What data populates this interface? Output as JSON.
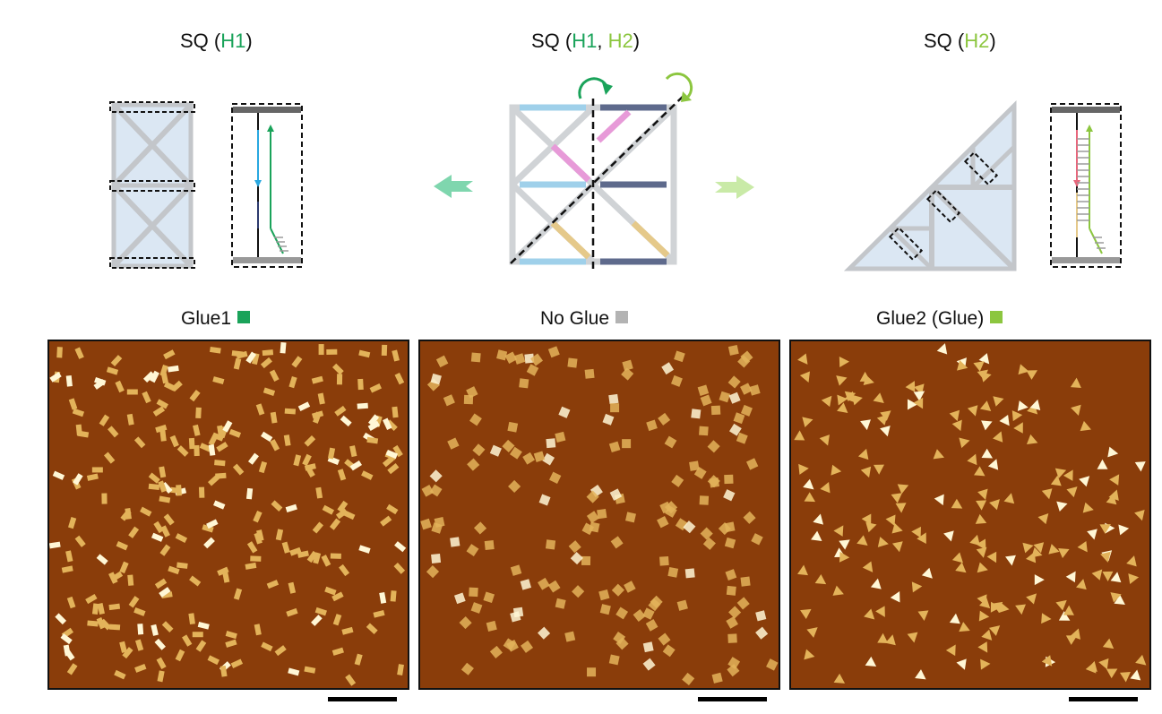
{
  "top": {
    "left": {
      "prefix": "SQ (",
      "h1": "H1",
      "suffix": ")"
    },
    "center": {
      "prefix": "SQ (",
      "h1": "H1",
      "sep": ", ",
      "h2": "H2",
      "suffix": ")"
    },
    "right": {
      "prefix": "SQ (",
      "h2": "H2",
      "suffix": ")"
    }
  },
  "panels": {
    "left": {
      "label": "Glue1",
      "swatch_color": "#1aa35a",
      "shape": "double-rect"
    },
    "center": {
      "label": "No Glue",
      "swatch_color": "#b3b3b3",
      "shape": "square"
    },
    "right": {
      "label": "Glue2 (Glue)",
      "swatch_color": "#8cc63f",
      "shape": "triangle"
    }
  },
  "colors": {
    "h1": "#1aa35a",
    "h2": "#8cc63f",
    "afm_background": "#8a3d0a",
    "arrow_left": "#7fd6ae",
    "arrow_right": "#c9eaa7"
  }
}
